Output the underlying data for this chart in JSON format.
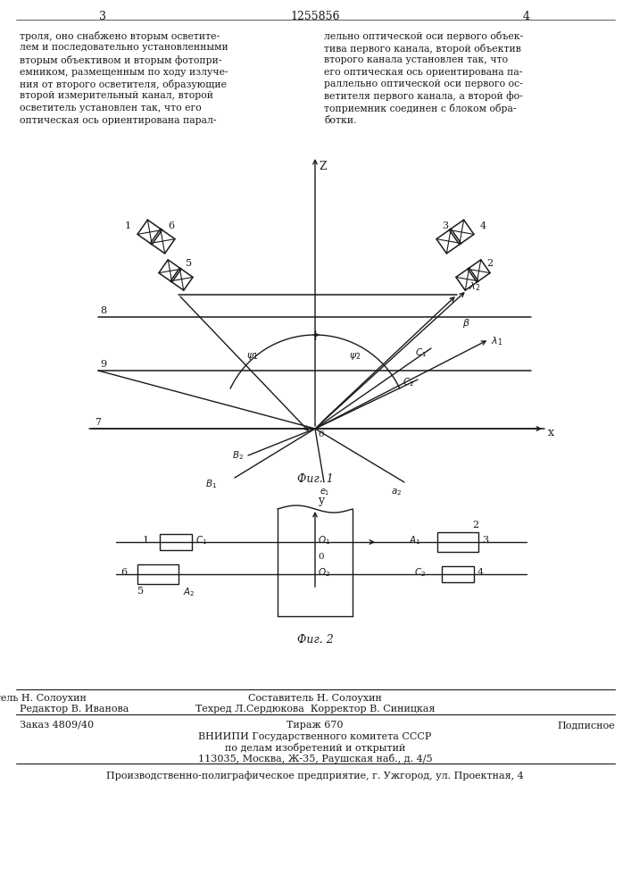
{
  "page_number_left": "3",
  "page_number_center": "1255856",
  "page_number_right": "4",
  "text_left": "троля, оно снабжено вторым осветите-\nлем и последовательно установленными\nвторым объективом и вторым фотопри-\nемником, размещенным по ходу излуче-\nния от второго осветителя, образующие\nвторой измерительный канал, второй\nосветитель установлен так, что его\nоптическая ось ориентирована парал-",
  "text_right": "лельно оптической оси первого объек-\nтива первого канала, второй объектив\nвторого канала установлен так, что\nего оптическая ось ориентирована па-\nраллельно оптической оси первого ос-\nветителя первого канала, а второй фо-\nтоприемник соединен с блоком обра-\nботки.",
  "fig1_label": "Фиг. 1",
  "fig2_label": "Фиг. 2",
  "footer_editor": "Редактор В. Иванова",
  "footer_compiler": "Составитель Н. Солоухин",
  "footer_techred": "Техред Л.Сердюкова  Корректор В. Синицкая",
  "footer_order": "Заказ 4809/40",
  "footer_tirazh": "Тираж 670",
  "footer_podp": "Подписное",
  "footer_vniipи": "ВНИИПИ Государственного комитета СССР",
  "footer_dela": "по делам изобретений и открытий",
  "footer_addr": "113035, Москва, Ж-35, Раушская наб., д. 4/5",
  "footer_prod": "Производственно-полиграфическое предприятие, г. Ужгород, ул. Проектная, 4",
  "bg_color": "#ffffff",
  "text_color": "#1a1a1a",
  "line_color": "#1a1a1a"
}
